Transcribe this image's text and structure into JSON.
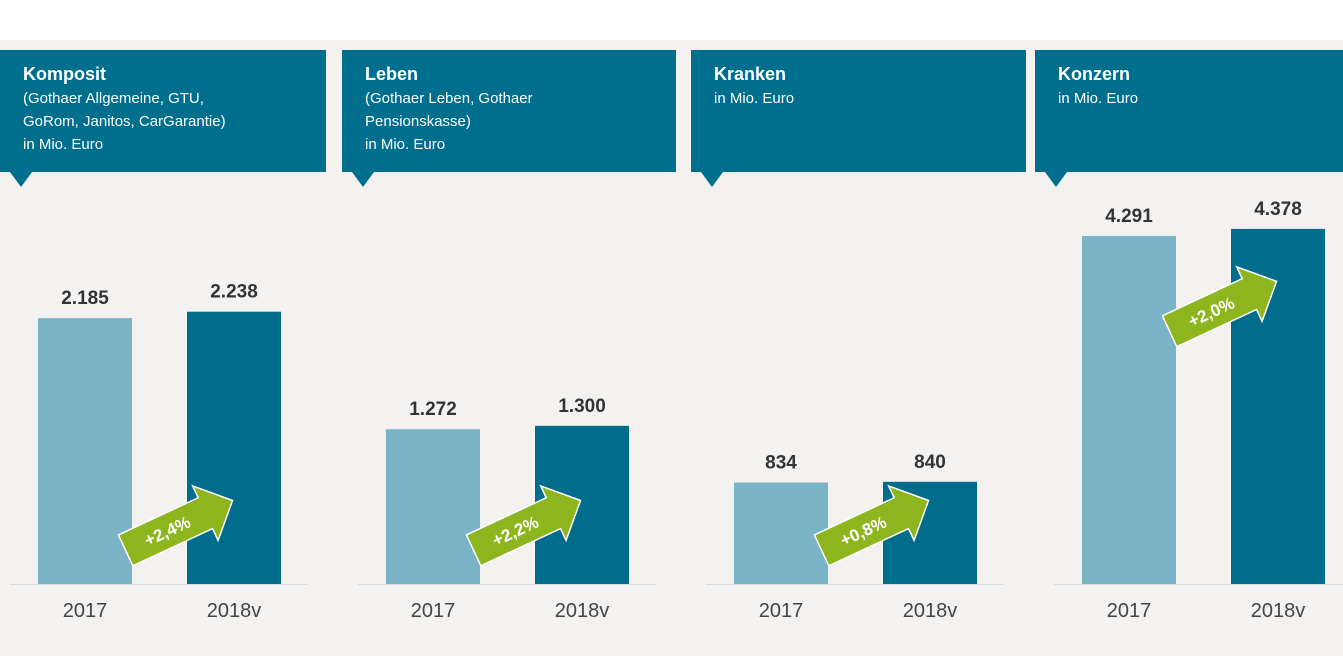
{
  "chart_data": [
    {
      "type": "bar",
      "title": "Komposit",
      "subtitle": [
        "(Gothaer Allgemeine,  GTU,",
        "GoRom, Janitos, CarGarantie)",
        "in Mio. Euro"
      ],
      "categories": [
        "2017",
        "2018v"
      ],
      "values": [
        2185,
        2238
      ],
      "value_labels": [
        "2.185",
        "2.238"
      ],
      "colors": [
        "#7ab3c6",
        "#006d8c"
      ],
      "annotation": "+2,4%",
      "ylim": [
        0,
        3000
      ]
    },
    {
      "type": "bar",
      "title": "Leben",
      "subtitle": [
        "(Gothaer Leben, Gothaer",
        "Pensionskasse)",
        "in Mio. Euro"
      ],
      "categories": [
        "2017",
        "2018v"
      ],
      "values": [
        1272,
        1300
      ],
      "value_labels": [
        "1.272",
        "1.300"
      ],
      "colors": [
        "#7ab3c6",
        "#006d8c"
      ],
      "annotation": "+2,2%",
      "ylim": [
        0,
        3000
      ]
    },
    {
      "type": "bar",
      "title": "Kranken",
      "subtitle": [
        "in Mio. Euro"
      ],
      "categories": [
        "2017",
        "2018v"
      ],
      "values": [
        834,
        840
      ],
      "colors": [
        "#7ab3c6",
        "#006d8c"
      ],
      "annotation": "+0,8%",
      "ylim": [
        0,
        3000
      ]
    },
    {
      "type": "bar",
      "title": "Konzern",
      "subtitle": [
        "in Mio. Euro"
      ],
      "categories": [
        "2017",
        "2018v"
      ],
      "values": [
        4291,
        4378
      ],
      "value_labels": [
        "4.291",
        "4.378"
      ],
      "colors": [
        "#7ab3c6",
        "#006d8c"
      ],
      "annotation": "+2,0%",
      "ylim": [
        0,
        4500
      ]
    }
  ]
}
